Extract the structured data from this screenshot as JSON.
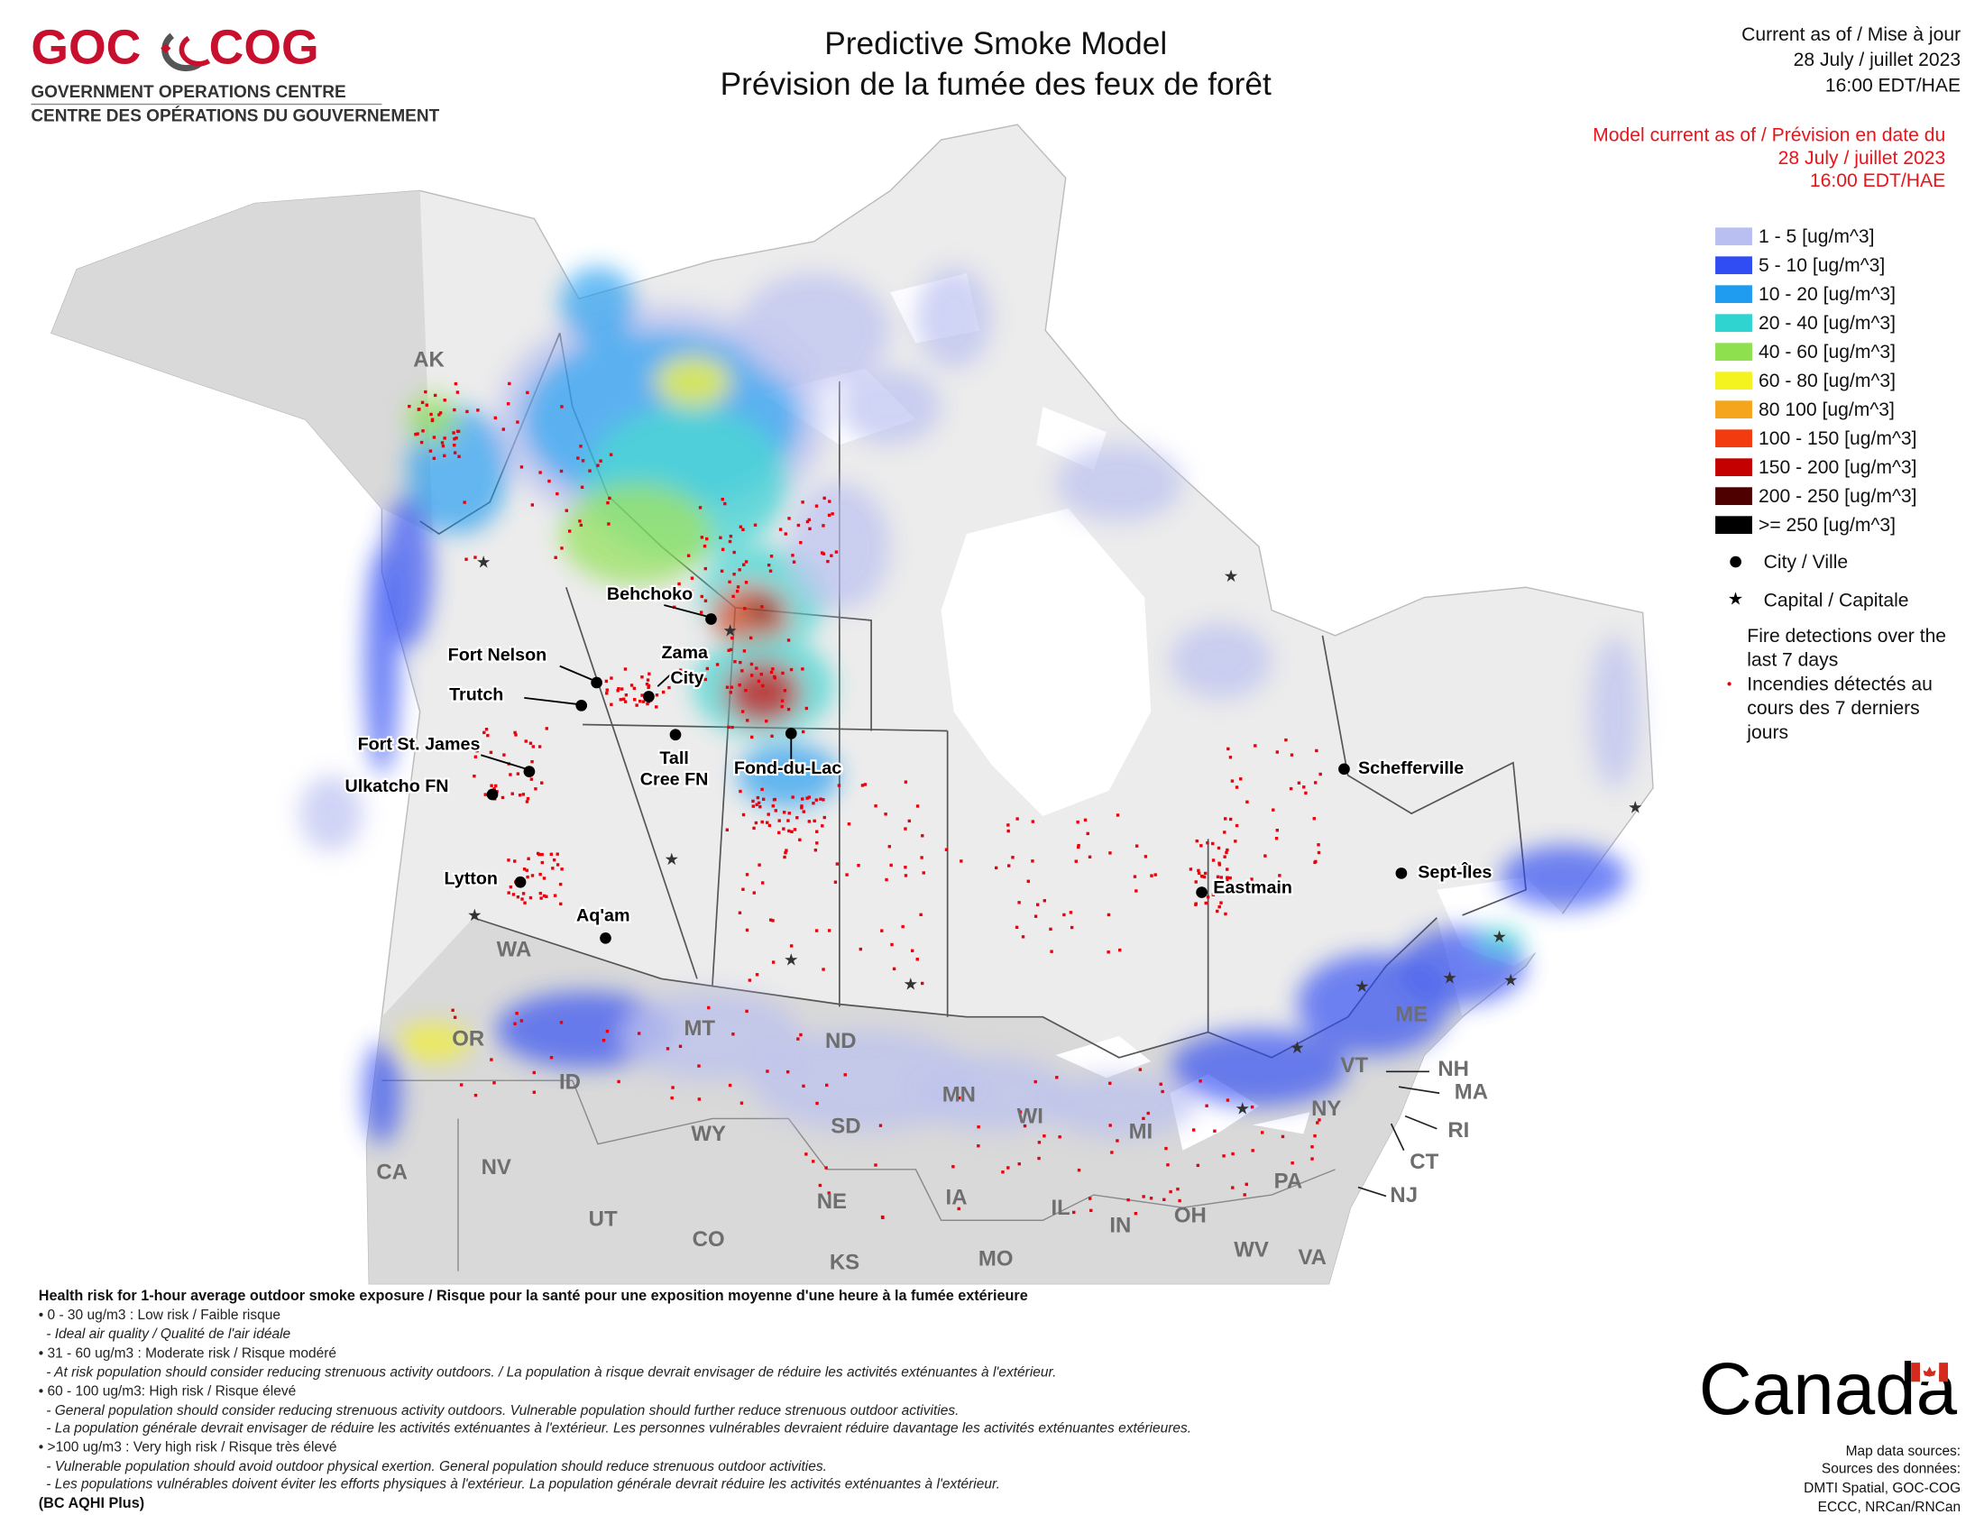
{
  "header": {
    "logo_left": "GOC",
    "logo_right": "COG",
    "org_en": "GOVERNMENT OPERATIONS CENTRE",
    "org_fr": "CENTRE DES OPÉRATIONS DU GOUVERNEMENT",
    "title": "Predictive Smoke Model",
    "subtitle": "Prévision de la fumée des feux de forêt"
  },
  "timestamp": {
    "label": "Current as of / Mise à jour",
    "date": "28 July / juillet 2023",
    "time": "16:00 EDT/HAE"
  },
  "model_timestamp": {
    "label": "Model current as of / Prévision en date du",
    "date": "28 July / juillet 2023",
    "time": "16:00 EDT/HAE"
  },
  "legend": {
    "items": [
      {
        "label": "1 - 5 [ug/m^3]",
        "color": "#b9bff0"
      },
      {
        "label": "5 - 10 [ug/m^3]",
        "color": "#2f4df2"
      },
      {
        "label": "10 - 20 [ug/m^3]",
        "color": "#1f9cf0"
      },
      {
        "label": "20 - 40 [ug/m^3]",
        "color": "#2fd3d0"
      },
      {
        "label": "40 - 60 [ug/m^3]",
        "color": "#8fe04f"
      },
      {
        "label": "60 - 80 [ug/m^3]",
        "color": "#f4f21f"
      },
      {
        "label": "80 100 [ug/m^3]",
        "color": "#f5a51c"
      },
      {
        "label": "100 - 150 [ug/m^3]",
        "color": "#f23c10"
      },
      {
        "label": "150 - 200 [ug/m^3]",
        "color": "#c40000"
      },
      {
        "label": "200 - 250 [ug/m^3]",
        "color": "#4e0000"
      },
      {
        "label": ">= 250 [ug/m^3]",
        "color": "#000000"
      }
    ],
    "city": "City / Ville",
    "capital": "Capital / Capitale",
    "fires": [
      "Fire detections over the",
      "last 7 days",
      "Incendies détectés au",
      "cours des 7 derniers",
      "jours"
    ]
  },
  "places": {
    "cities": [
      "Behchoko",
      "Fort Nelson",
      "Trutch",
      "Fond-du-Lac",
      "Fort St. James",
      "Ulkatcho FN",
      "Lytton",
      "Aq'am",
      "Schefferville",
      "Sept-Îles",
      "Eastmain"
    ],
    "zama_city": [
      "Zama",
      "City"
    ],
    "tall_cree": [
      "Tall",
      "Cree FN"
    ],
    "regions": [
      "AK",
      "WA",
      "OR",
      "ID",
      "MT",
      "ND",
      "MN",
      "WI",
      "MI",
      "SD",
      "WY",
      "NV",
      "CA",
      "UT",
      "CO",
      "NE",
      "IA",
      "IL",
      "IN",
      "OH",
      "PA",
      "NY",
      "VT",
      "ME",
      "NH",
      "MA",
      "RI",
      "CT",
      "NJ",
      "WV",
      "VA",
      "KS",
      "MO"
    ]
  },
  "health_risk": [
    "Health risk for 1-hour average outdoor smoke exposure / Risque pour la santé pour une exposition moyenne d'une heure à la fumée extérieure",
    "• 0 - 30 ug/m3 : Low risk / Faible risque",
    "- Ideal air quality / Qualité de l'air idéale",
    "• 31 - 60 ug/m3 : Moderate risk / Risque modéré",
    "- At risk population should consider reducing strenuous activity outdoors. / La population à risque devrait envisager de réduire les activités exténuantes à l'extérieur.",
    "• 60 - 100 ug/m3: High risk / Risque élevé",
    "- General population should consider reducing strenuous activity outdoors. Vulnerable population should further reduce strenuous outdoor activities.",
    "- La population générale devrait envisager de réduire les activités exténuantes à l'extérieur. Les personnes vulnérables devraient réduire davantage les activités exténuantes extérieures.",
    "• >100 ug/m3 : Very high risk / Risque très élevé",
    "- Vulnerable population should avoid outdoor physical exertion. General population should reduce strenuous outdoor activities.",
    "- Les populations vulnérables doivent éviter les efforts physiques à l'extérieur. La population générale devrait réduire les activités exténuantes à l'extérieur.",
    "(BC AQHI Plus)"
  ],
  "wordmark": "Canada",
  "sources": [
    "Map data sources:",
    "Sources des données:",
    "DMTI Spatial, GOC-COG",
    "ECCC, NRCan/RNCan"
  ]
}
